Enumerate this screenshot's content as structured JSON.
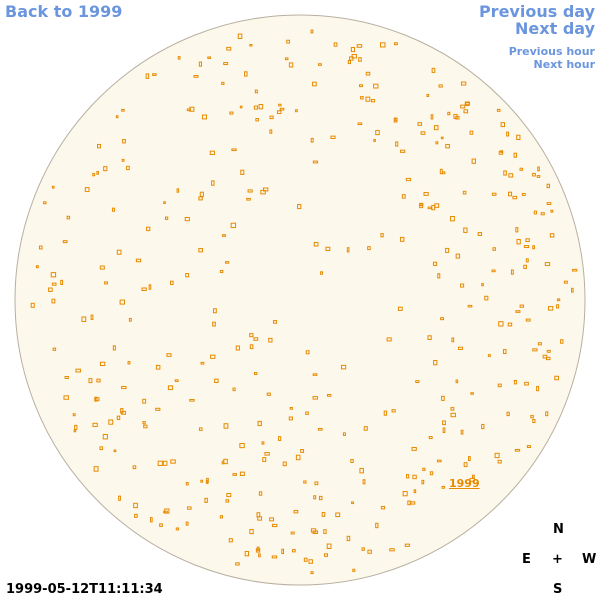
{
  "navigation": {
    "back": "Back to 1999",
    "previous_day": "Previous day",
    "next_day": "Next day",
    "previous_hour": "Previous hour",
    "next_hour": "Next hour"
  },
  "timestamp": "1999-05-12T11:11:34",
  "compass": {
    "north": "N",
    "east": "E",
    "center": "+",
    "west": "W",
    "south": "S"
  },
  "disk_label": "1999"
}
